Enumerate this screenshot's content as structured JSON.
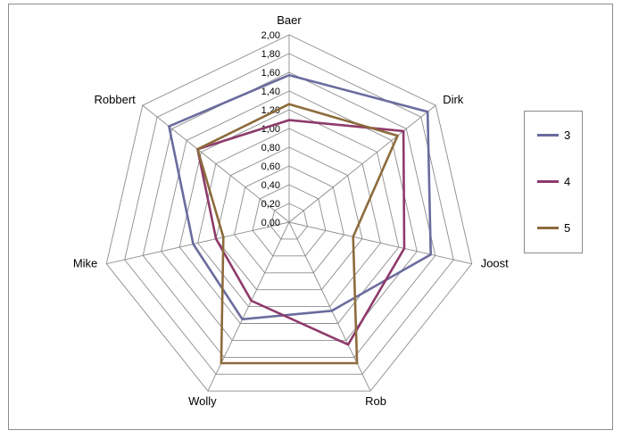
{
  "chart_data": {
    "type": "radar",
    "categories": [
      "Baer",
      "Dirk",
      "Joost",
      "Rob",
      "Wolly",
      "Mike",
      "Robbert"
    ],
    "rlim": [
      0,
      2
    ],
    "ticks": [
      "0,00",
      "0,20",
      "0,40",
      "0,60",
      "0,80",
      "1,00",
      "1,20",
      "1,40",
      "1,60",
      "1,80",
      "2,00"
    ],
    "grid": true,
    "legend_position": "right",
    "series": [
      {
        "name": "3",
        "color": "#6b6b9e",
        "values": [
          1.57,
          1.89,
          1.55,
          1.05,
          1.15,
          1.05,
          1.64
        ]
      },
      {
        "name": "4",
        "color": "#8e3a6b",
        "values": [
          1.09,
          1.56,
          1.26,
          1.45,
          0.93,
          0.8,
          1.25
        ]
      },
      {
        "name": "5",
        "color": "#8d6b3c",
        "values": [
          1.26,
          1.48,
          0.7,
          1.67,
          1.67,
          0.72,
          1.25
        ]
      }
    ]
  }
}
